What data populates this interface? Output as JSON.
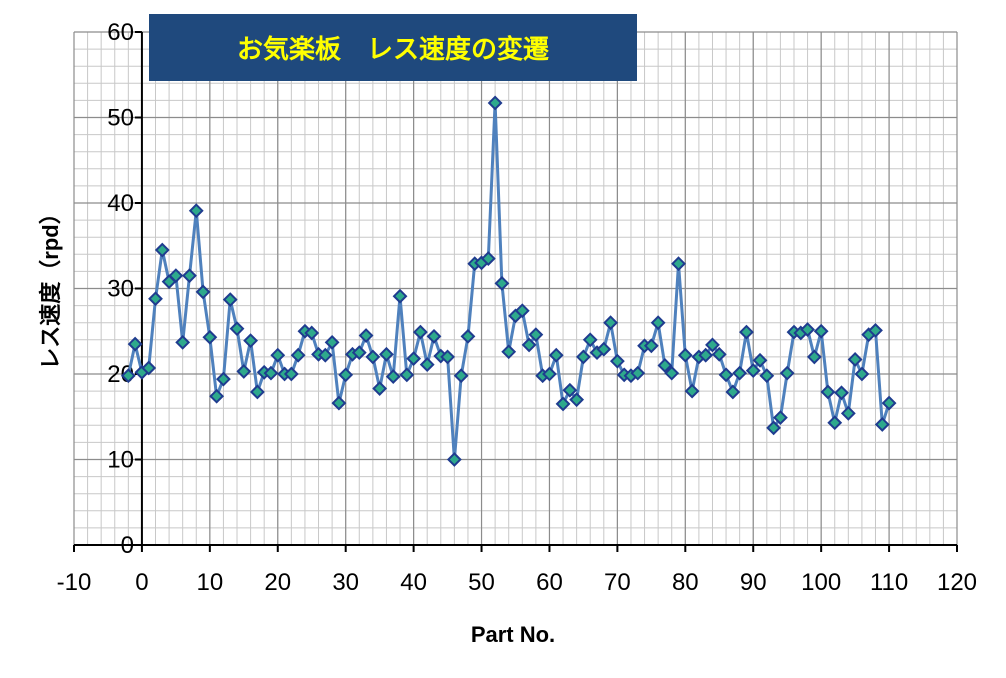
{
  "chart_data": {
    "type": "scatter",
    "title": "お気楽板　レス速度の変遷",
    "xlabel": "Part No.",
    "ylabel": "レス速度（rpd）",
    "xlim": [
      -10,
      120
    ],
    "ylim": [
      0,
      60
    ],
    "x_major_step": 10,
    "y_major_step": 10,
    "x_minor_step": 2,
    "y_minor_step": 2,
    "grid": true,
    "legend": "none",
    "line_color": "#4F81BD",
    "marker_fill": "#2EA98C",
    "marker_edge": "#1F3C8F",
    "title_bg": "#1F497D",
    "title_color": "#FFFF00",
    "x_tick_labels": [
      "-10",
      "0",
      "10",
      "20",
      "30",
      "40",
      "50",
      "60",
      "70",
      "80",
      "90",
      "100",
      "110",
      "120"
    ],
    "y_tick_labels": [
      "0",
      "10",
      "20",
      "30",
      "40",
      "50",
      "60"
    ],
    "series": [
      {
        "x": [
          -2,
          -1,
          0,
          1,
          2,
          3,
          4,
          5,
          6,
          7,
          8,
          9,
          10,
          11,
          12,
          13,
          14,
          15,
          16,
          17,
          18,
          19,
          20,
          21,
          22,
          23,
          24,
          25,
          26,
          27,
          28,
          29,
          30,
          31,
          32,
          33,
          34,
          35,
          36,
          37,
          38,
          39,
          40,
          41,
          42,
          43,
          44,
          45,
          46,
          47,
          48,
          49,
          50,
          51,
          52,
          53,
          54,
          55,
          56,
          57,
          58,
          59,
          60,
          61,
          62,
          63,
          64,
          65,
          66,
          67,
          68,
          69,
          70,
          71,
          72,
          73,
          74,
          75,
          76,
          77,
          78,
          79,
          80,
          81,
          82,
          83,
          84,
          85,
          86,
          87,
          88,
          89,
          90,
          91,
          92,
          93,
          94,
          95,
          96,
          97,
          98,
          99,
          100,
          101,
          102,
          103,
          104,
          105,
          106,
          107,
          108,
          109,
          110
        ],
        "y": [
          19.8,
          23.5,
          20.2,
          20.7,
          28.8,
          34.5,
          30.8,
          31.5,
          23.7,
          31.5,
          39.1,
          29.6,
          24.3,
          17.4,
          19.4,
          28.7,
          25.3,
          20.3,
          23.9,
          17.9,
          20.2,
          20.1,
          22.2,
          20.0,
          20.0,
          22.2,
          25.0,
          24.8,
          22.3,
          22.2,
          23.7,
          16.6,
          19.9,
          22.3,
          22.5,
          24.5,
          22.0,
          18.3,
          22.3,
          19.7,
          29.1,
          19.9,
          21.8,
          24.9,
          21.1,
          24.4,
          22.1,
          22.0,
          10.0,
          19.8,
          24.4,
          32.9,
          33.0,
          33.5,
          51.7,
          30.6,
          22.6,
          26.8,
          27.4,
          23.4,
          24.6,
          19.8,
          20.0,
          22.2,
          16.5,
          18.1,
          17.0,
          22.0,
          24.0,
          22.5,
          22.9,
          26.0,
          21.5,
          19.9,
          19.8,
          20.1,
          23.3,
          23.3,
          26.0,
          21.0,
          20.1,
          32.9,
          22.2,
          18.0,
          22.0,
          22.2,
          23.4,
          22.3,
          19.9,
          17.9,
          20.1,
          24.9,
          20.4,
          21.6,
          19.8,
          13.7,
          14.9,
          20.1,
          24.9,
          24.8,
          25.2,
          22.0,
          25.0,
          17.9,
          14.3,
          17.8,
          15.4,
          21.7,
          20.0,
          24.6,
          25.1,
          14.1,
          16.6
        ]
      }
    ]
  }
}
